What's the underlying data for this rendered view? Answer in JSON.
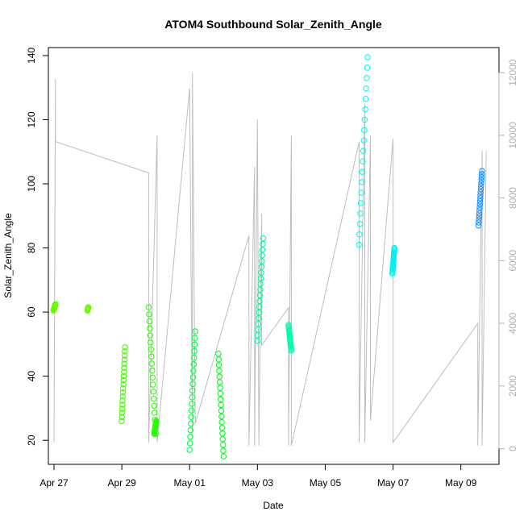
{
  "chart_data": {
    "type": "scatter",
    "title": "ATOM4 Southbound Solar_Zenith_Angle",
    "xlabel": "Date",
    "ylabel": "Solar_Zenith_Angle",
    "x_axis": {
      "range": [
        "2024-04-26T20:00",
        "2024-05-10T03:00"
      ],
      "ticks": [
        {
          "date": "2024-04-27T00:00",
          "label": "Apr 27"
        },
        {
          "date": "2024-04-29T00:00",
          "label": "Apr 29"
        },
        {
          "date": "2024-05-01T00:00",
          "label": "May 01"
        },
        {
          "date": "2024-05-03T00:00",
          "label": "May 03"
        },
        {
          "date": "2024-05-05T00:00",
          "label": "May 05"
        },
        {
          "date": "2024-05-07T00:00",
          "label": "May 07"
        },
        {
          "date": "2024-05-09T00:00",
          "label": "May 09"
        }
      ]
    },
    "y_axis_left": {
      "range": [
        12.5,
        142.5
      ],
      "ticks": [
        20,
        40,
        60,
        80,
        100,
        120,
        140
      ]
    },
    "y_axis_right": {
      "range": [
        -500,
        12800
      ],
      "ticks": [
        0,
        2000,
        4000,
        6000,
        8000,
        10000,
        12000
      ],
      "color": "#b0b0b0"
    },
    "colors": {
      "right_series": "#bebebe",
      "axis": "#000000"
    },
    "series": [
      {
        "x_start": "2024-04-26T23:40",
        "x_end": "2024-04-27T01:00",
        "y_start": 60.5,
        "y_end": 62.5,
        "color": "#66ff00"
      },
      {
        "x_start": "2024-04-27T23:40",
        "x_end": "2024-04-28T00:20",
        "y_start": 60.5,
        "y_end": 61.5,
        "color": "#66ff00"
      },
      {
        "x_start": "2024-04-28T23:50",
        "x_end": "2024-04-29T02:20",
        "y_start": 26,
        "y_end": 49,
        "color": "#44ff00"
      },
      {
        "x_start": "2024-04-29T19:00",
        "x_end": "2024-04-30T00:00",
        "y_start": 61.5,
        "y_end": 22,
        "color": "#2bff00"
      },
      {
        "x_start": "2024-04-29T23:00",
        "x_end": "2024-04-30T00:20",
        "y_start": 22,
        "y_end": 26,
        "color": "#2bff00"
      },
      {
        "x_start": "2024-05-01T00:00",
        "x_end": "2024-05-01T04:00",
        "y_start": 17,
        "y_end": 54,
        "color": "#00ff44"
      },
      {
        "x_start": "2024-05-01T20:20",
        "x_end": "2024-05-02T00:00",
        "y_start": 47,
        "y_end": 15,
        "color": "#00ff22"
      },
      {
        "x_start": "2024-05-03T00:00",
        "x_end": "2024-05-03T04:00",
        "y_start": 51,
        "y_end": 83,
        "color": "#00ff99"
      },
      {
        "x_start": "2024-05-03T22:00",
        "x_end": "2024-05-04T00:00",
        "y_start": 56,
        "y_end": 48,
        "color": "#00ffaa"
      },
      {
        "x_start": "2024-05-05T23:50",
        "x_end": "2024-05-06T06:00",
        "y_start": 81,
        "y_end": 139.5,
        "color": "#00ffee"
      },
      {
        "x_start": "2024-05-06T23:30",
        "x_end": "2024-05-07T01:00",
        "y_start": 72,
        "y_end": 80,
        "color": "#00eeee"
      },
      {
        "x_start": "2024-05-09T12:30",
        "x_end": "2024-05-09T15:00",
        "y_start": 87,
        "y_end": 104,
        "color": "#1e90ff"
      }
    ]
  }
}
